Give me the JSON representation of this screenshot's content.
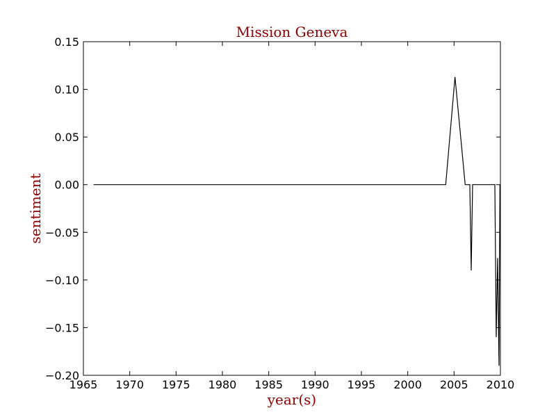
{
  "chart_data": {
    "type": "line",
    "title": "Mission Geneva",
    "xlabel": "year(s)",
    "ylabel": "sentiment",
    "xlim": [
      1965,
      2010
    ],
    "ylim": [
      -0.2,
      0.15
    ],
    "xticks": [
      "1965",
      "1970",
      "1975",
      "1980",
      "1985",
      "1990",
      "1995",
      "2000",
      "2005",
      "2010"
    ],
    "yticks": [
      "0.15",
      "0.10",
      "0.05",
      "0.00",
      "−0.05",
      "−0.10",
      "−0.15",
      "−0.20"
    ],
    "ytick_values": [
      0.15,
      0.1,
      0.05,
      0.0,
      -0.05,
      -0.1,
      -0.15,
      -0.2
    ],
    "grid": false,
    "legend": "none",
    "series": [
      {
        "color": "#000000",
        "x": [
          1966.1,
          2004.1,
          2005.1,
          2006.2,
          2006.7,
          2006.85,
          2007.0,
          2007.3,
          2009.4,
          2009.55,
          2009.7,
          2009.85,
          2009.95,
          2010.0
        ],
        "y": [
          0.0,
          0.0,
          0.113,
          0.0,
          0.0,
          -0.09,
          0.0,
          0.0,
          0.0,
          -0.16,
          -0.077,
          -0.19,
          0.0,
          0.0
        ]
      }
    ],
    "colors": {
      "title": "#8b0000",
      "axis_label": "#8b0000",
      "line": "#000000",
      "frame": "#000000"
    }
  }
}
